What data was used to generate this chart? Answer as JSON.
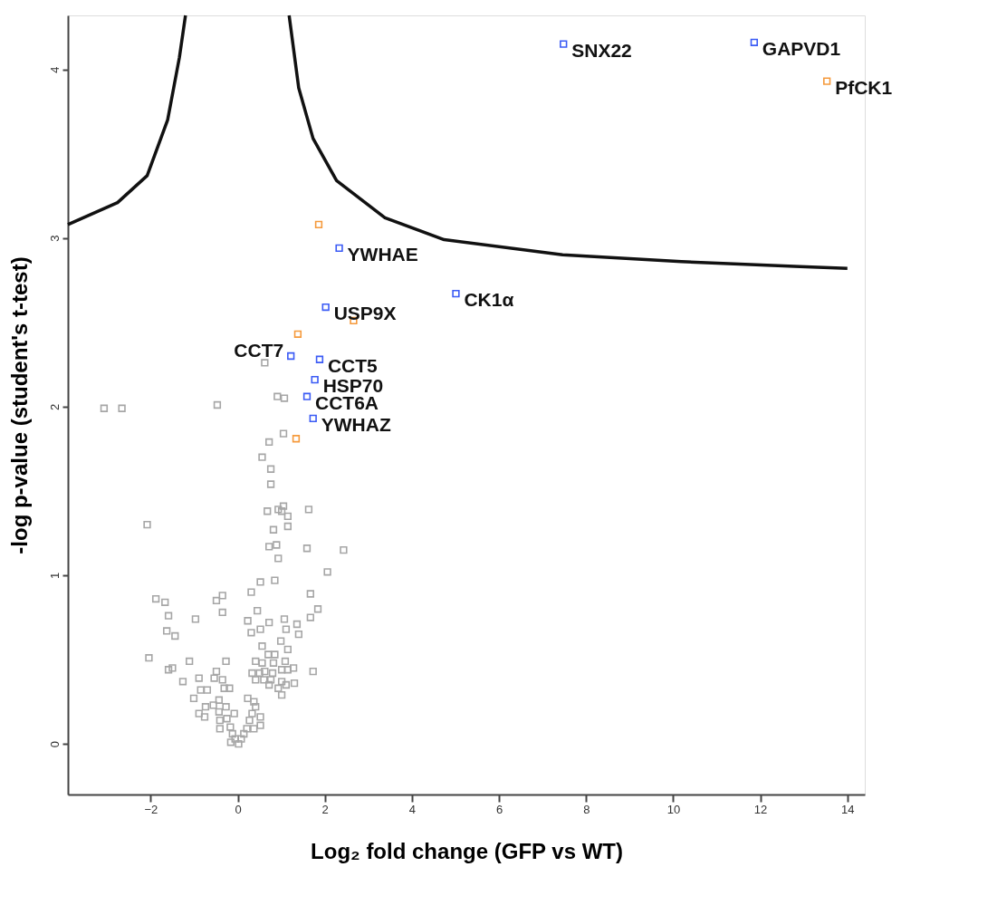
{
  "chart_data": {
    "type": "scatter",
    "xlabel": "Log₂ fold change (GFP vs WT)",
    "ylabel": "-log p-value (student's t-test)",
    "xlim": [
      -3.9,
      14.4
    ],
    "ylim": [
      -0.3,
      4.32
    ],
    "xticks": [
      -2,
      0,
      2,
      4,
      6,
      8,
      10,
      12,
      14
    ],
    "yticks": [
      0,
      1,
      2,
      3,
      4
    ],
    "marker": "square",
    "series": [
      {
        "type": "line",
        "marker": "none",
        "line_style": "solid",
        "color": "#111111",
        "x": [
          -3.9,
          -2.76,
          -2.08,
          -1.61,
          -1.34,
          -1.2
        ],
        "values": [
          3.08,
          3.21,
          3.37,
          3.7,
          4.07,
          4.32
        ]
      },
      {
        "type": "line",
        "marker": "none",
        "line_style": "solid",
        "color": "#111111",
        "x": [
          1.18,
          1.4,
          1.73,
          2.27,
          3.38,
          4.74,
          7.46,
          10.19,
          12.91,
          14.0
        ],
        "values": [
          4.32,
          3.89,
          3.59,
          3.34,
          3.12,
          2.99,
          2.9,
          2.86,
          2.83,
          2.82
        ]
      },
      {
        "color": "#a6a6a6",
        "x": [
          -3.07,
          -2.66,
          -0.47,
          0.91,
          1.07,
          0.62,
          1.05,
          0.72,
          0.56,
          0.76,
          0.76,
          1.05,
          0.68,
          0.93,
          1.01,
          1.15,
          1.63,
          -2.08,
          0.82,
          1.15,
          0.72,
          0.89,
          0.93,
          1.59,
          2.43,
          2.06,
          0.52,
          0.85,
          0.31,
          1.67,
          1.84,
          1.67,
          -1.88,
          -1.67,
          -1.59,
          -1.63,
          -1.44,
          -0.97,
          -0.49,
          -0.35,
          -0.35,
          0.45,
          0.23,
          0.72,
          0.31,
          0.52,
          1.07,
          1.11,
          1.36,
          1.4,
          0.99,
          1.15,
          0.56,
          -2.04,
          -1.11,
          -0.27,
          -1.59,
          -1.5,
          -1.26,
          -0.89,
          -0.49,
          -0.54,
          -0.35,
          -0.31,
          -0.19,
          -0.85,
          -0.7,
          -1.01,
          -0.89,
          -0.76,
          -0.74,
          -0.56,
          -0.43,
          -0.43,
          -0.41,
          -0.41,
          -0.27,
          -0.25,
          -0.17,
          -0.12,
          -0.06,
          0.02,
          0.08,
          0.14,
          0.21,
          0.27,
          0.33,
          0.41,
          0.23,
          0.37,
          0.52,
          0.52,
          0.37,
          -0.08,
          -0.16,
          0.41,
          0.56,
          0.7,
          0.85,
          0.82,
          1.09,
          0.33,
          0.5,
          0.62,
          0.8,
          1.01,
          1.15,
          1.28,
          1.73,
          0.41,
          0.6,
          0.76,
          1.01,
          1.3,
          0.72,
          1.11,
          0.93,
          1.01
        ],
        "values": [
          1.99,
          1.99,
          2.01,
          2.06,
          2.05,
          2.26,
          1.84,
          1.79,
          1.7,
          1.63,
          1.54,
          1.41,
          1.38,
          1.39,
          1.38,
          1.35,
          1.39,
          1.3,
          1.27,
          1.29,
          1.17,
          1.18,
          1.1,
          1.16,
          1.15,
          1.02,
          0.96,
          0.97,
          0.9,
          0.89,
          0.8,
          0.75,
          0.86,
          0.84,
          0.76,
          0.67,
          0.64,
          0.74,
          0.85,
          0.88,
          0.78,
          0.79,
          0.73,
          0.72,
          0.66,
          0.68,
          0.74,
          0.68,
          0.71,
          0.65,
          0.61,
          0.56,
          0.58,
          0.51,
          0.49,
          0.49,
          0.44,
          0.45,
          0.37,
          0.39,
          0.43,
          0.39,
          0.38,
          0.33,
          0.33,
          0.32,
          0.32,
          0.27,
          0.18,
          0.16,
          0.22,
          0.23,
          0.26,
          0.19,
          0.14,
          0.09,
          0.22,
          0.15,
          0.1,
          0.06,
          0.03,
          0.0,
          0.03,
          0.06,
          0.09,
          0.14,
          0.18,
          0.22,
          0.27,
          0.25,
          0.16,
          0.11,
          0.09,
          0.18,
          0.01,
          0.49,
          0.48,
          0.53,
          0.53,
          0.48,
          0.49,
          0.42,
          0.42,
          0.43,
          0.42,
          0.44,
          0.44,
          0.45,
          0.43,
          0.38,
          0.38,
          0.38,
          0.37,
          0.36,
          0.35,
          0.35,
          0.33,
          0.29
        ]
      },
      {
        "color": "#3b5bf5",
        "x": [
          7.48,
          11.86,
          2.33,
          2.02,
          5.01,
          1.22,
          1.88,
          1.77,
          1.59,
          1.73
        ],
        "values": [
          4.15,
          4.16,
          2.94,
          2.59,
          2.67,
          2.3,
          2.28,
          2.16,
          2.06,
          1.93
        ]
      },
      {
        "color": "#f59a3c",
        "x": [
          13.53,
          1.86,
          2.66,
          1.38,
          1.34
        ],
        "values": [
          3.93,
          3.08,
          2.51,
          2.43,
          1.81
        ]
      }
    ],
    "annotations": [
      {
        "text": "SNX22",
        "x": 7.48,
        "y": 4.15
      },
      {
        "text": "GAPVD1",
        "x": 11.86,
        "y": 4.16
      },
      {
        "text": "PfCK1",
        "x": 13.53,
        "y": 3.93
      },
      {
        "text": "YWHAE",
        "x": 2.33,
        "y": 2.94
      },
      {
        "text": "USP9X",
        "x": 2.02,
        "y": 2.59
      },
      {
        "text": "CK1α",
        "x": 5.01,
        "y": 2.67
      },
      {
        "text": "CCT7",
        "x": 1.22,
        "y": 2.3
      },
      {
        "text": "CCT5",
        "x": 1.88,
        "y": 2.28
      },
      {
        "text": "HSP70",
        "x": 1.77,
        "y": 2.16
      },
      {
        "text": "CCT6A",
        "x": 1.59,
        "y": 2.06
      },
      {
        "text": "YWHAZ",
        "x": 1.73,
        "y": 1.93
      }
    ]
  }
}
